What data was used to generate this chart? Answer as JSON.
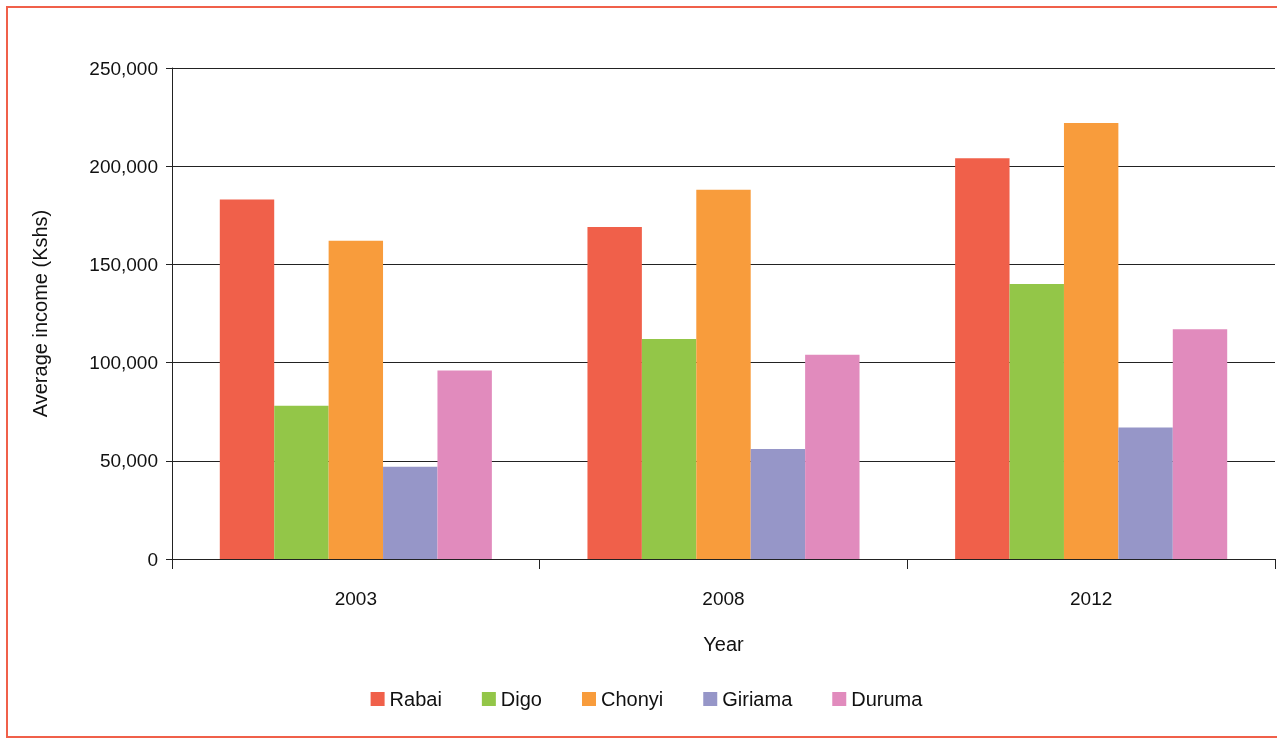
{
  "chart_data": {
    "type": "bar",
    "xlabel": "Year",
    "ylabel": "Average income (Kshs)",
    "categories": [
      "2003",
      "2008",
      "2012"
    ],
    "series": [
      {
        "name": "Rabai",
        "color": "#f0604a",
        "values": [
          183000,
          169000,
          204000
        ]
      },
      {
        "name": "Digo",
        "color": "#93c648",
        "values": [
          78000,
          112000,
          140000
        ]
      },
      {
        "name": "Chonyi",
        "color": "#f89c3c",
        "values": [
          162000,
          188000,
          222000
        ]
      },
      {
        "name": "Giriama",
        "color": "#9696c8",
        "values": [
          47000,
          56000,
          67000
        ]
      },
      {
        "name": "Duruma",
        "color": "#e18bbd",
        "values": [
          96000,
          104000,
          117000
        ]
      }
    ],
    "ylim": [
      0,
      250000
    ],
    "yticks": [
      0,
      {
        "value": 50000,
        "label": "50,000"
      },
      {
        "value": 100000,
        "label": "100,000"
      },
      {
        "value": 150000,
        "label": "150,000"
      },
      {
        "value": 200000,
        "label": "200,000"
      },
      {
        "value": 250000,
        "label": "250,000"
      }
    ],
    "grid": "y",
    "legend": "bottom"
  }
}
